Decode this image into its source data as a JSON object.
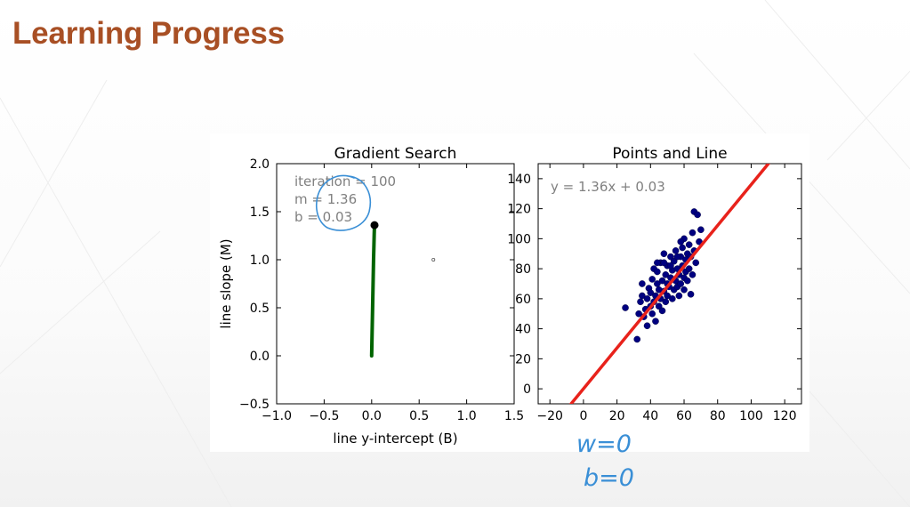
{
  "page": {
    "title": "Learning Progress"
  },
  "colors": {
    "title": "#a84f24",
    "path_line": "#006400",
    "point": "#000080",
    "fit_line": "#e8221b",
    "annotation": "#3a8fd6",
    "text_gray": "#808080"
  },
  "handwriting": {
    "line1": "w=0",
    "line2": "b=0"
  },
  "chart_data": [
    {
      "type": "line",
      "title": "Gradient Search",
      "xlabel": "line y-intercept (B)",
      "ylabel": "line slope (M)",
      "xlim": [
        -1.0,
        1.5
      ],
      "ylim": [
        -0.5,
        2.0
      ],
      "xticks": [
        "−1.0",
        "−0.5",
        "0.0",
        "0.5",
        "1.0",
        "1.5"
      ],
      "xtick_values": [
        -1.0,
        -0.5,
        0.0,
        0.5,
        1.0,
        1.5
      ],
      "yticks": [
        "−0.5",
        "0.0",
        "0.5",
        "1.0",
        "1.5",
        "2.0"
      ],
      "ytick_values": [
        -0.5,
        0.0,
        0.5,
        1.0,
        1.5,
        2.0
      ],
      "grid": false,
      "annotations": [
        "iteration = 100",
        "m = 1.36",
        " b = 0.03"
      ],
      "series": [
        {
          "x": [
            0.0,
            0.004,
            0.008,
            0.012,
            0.016,
            0.02,
            0.024,
            0.027,
            0.03
          ],
          "y": [
            0.0,
            0.2,
            0.4,
            0.6,
            0.8,
            1.0,
            1.15,
            1.27,
            1.36
          ]
        }
      ],
      "end_point": {
        "x": 0.03,
        "y": 1.36
      },
      "stray_marker": {
        "x": 0.65,
        "y": 1.0
      }
    },
    {
      "type": "scatter",
      "title": "Points and Line",
      "xlim": [
        -27,
        130
      ],
      "ylim": [
        -10,
        150
      ],
      "xticks": [
        "−20",
        "0",
        "20",
        "40",
        "60",
        "80",
        "100",
        "120"
      ],
      "xtick_values": [
        -20,
        0,
        20,
        40,
        60,
        80,
        100,
        120
      ],
      "yticks": [
        "0",
        "20",
        "40",
        "60",
        "80",
        "100",
        "120",
        "140"
      ],
      "ytick_values": [
        0,
        20,
        40,
        60,
        80,
        100,
        120,
        140
      ],
      "grid": false,
      "equation": "y = 1.36x + 0.03",
      "fit_line": {
        "slope": 1.36,
        "intercept": 0.03
      },
      "points": [
        [
          25,
          54
        ],
        [
          32,
          33
        ],
        [
          33,
          50
        ],
        [
          34,
          58
        ],
        [
          35,
          62
        ],
        [
          35,
          70
        ],
        [
          36,
          48
        ],
        [
          37,
          53
        ],
        [
          38,
          60
        ],
        [
          38,
          42
        ],
        [
          39,
          67
        ],
        [
          40,
          55
        ],
        [
          40,
          64
        ],
        [
          41,
          50
        ],
        [
          41,
          73
        ],
        [
          42,
          58
        ],
        [
          42,
          80
        ],
        [
          43,
          45
        ],
        [
          43,
          62
        ],
        [
          44,
          70
        ],
        [
          44,
          78
        ],
        [
          45,
          55
        ],
        [
          45,
          66
        ],
        [
          46,
          60
        ],
        [
          46,
          84
        ],
        [
          47,
          52
        ],
        [
          47,
          72
        ],
        [
          48,
          65
        ],
        [
          48,
          90
        ],
        [
          49,
          58
        ],
        [
          49,
          76
        ],
        [
          50,
          62
        ],
        [
          50,
          70
        ],
        [
          50,
          82
        ],
        [
          51,
          68
        ],
        [
          52,
          74
        ],
        [
          52,
          88
        ],
        [
          53,
          60
        ],
        [
          53,
          79
        ],
        [
          54,
          66
        ],
        [
          54,
          85
        ],
        [
          55,
          72
        ],
        [
          55,
          92
        ],
        [
          56,
          68
        ],
        [
          56,
          80
        ],
        [
          57,
          62
        ],
        [
          57,
          76
        ],
        [
          58,
          88
        ],
        [
          58,
          70
        ],
        [
          59,
          94
        ],
        [
          59,
          82
        ],
        [
          60,
          66
        ],
        [
          60,
          74
        ],
        [
          60,
          100
        ],
        [
          61,
          86
        ],
        [
          61,
          78
        ],
        [
          62,
          90
        ],
        [
          62,
          72
        ],
        [
          63,
          96
        ],
        [
          63,
          80
        ],
        [
          64,
          63
        ],
        [
          64,
          88
        ],
        [
          65,
          104
        ],
        [
          65,
          76
        ],
        [
          66,
          118
        ],
        [
          66,
          92
        ],
        [
          67,
          84
        ],
        [
          68,
          116
        ],
        [
          69,
          98
        ],
        [
          70,
          106
        ],
        [
          56,
          88
        ],
        [
          52,
          82
        ],
        [
          48,
          84
        ],
        [
          44,
          84
        ],
        [
          58,
          98
        ]
      ]
    }
  ]
}
